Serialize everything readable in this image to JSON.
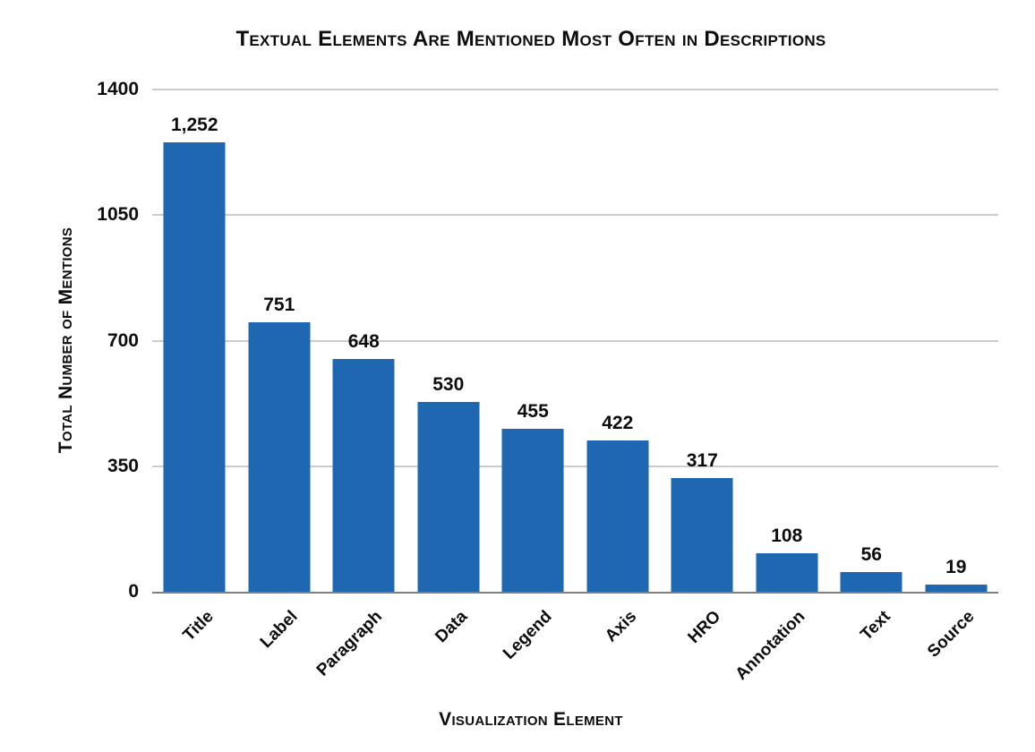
{
  "chart_data": {
    "type": "bar",
    "title": "Textual Elements Are Mentioned Most Often in Descriptions",
    "xlabel": "Visualization Element",
    "ylabel": "Total Number of Mentions",
    "categories": [
      "Title",
      "Label",
      "Paragraph",
      "Data",
      "Legend",
      "Axis",
      "HRO",
      "Annotation",
      "Text",
      "Source"
    ],
    "values": [
      1252,
      751,
      648,
      530,
      455,
      422,
      317,
      108,
      56,
      19
    ],
    "value_labels": [
      "1,252",
      "751",
      "648",
      "530",
      "455",
      "422",
      "317",
      "108",
      "56",
      "19"
    ],
    "ylim": [
      0,
      1400
    ],
    "yticks": [
      {
        "label": "0",
        "value": 0
      },
      {
        "label": "350",
        "value": 350
      },
      {
        "label": "700",
        "value": 700
      },
      {
        "label": "1050",
        "value": 1050
      },
      {
        "label": "1400",
        "value": 1400
      }
    ],
    "grid": "horizontal",
    "legend": "none",
    "bar_color": "#1f67b1",
    "gridline_color": "#cccccc",
    "axis_line_color": "#7f7f7f",
    "text_color": "#0d0d0d"
  }
}
